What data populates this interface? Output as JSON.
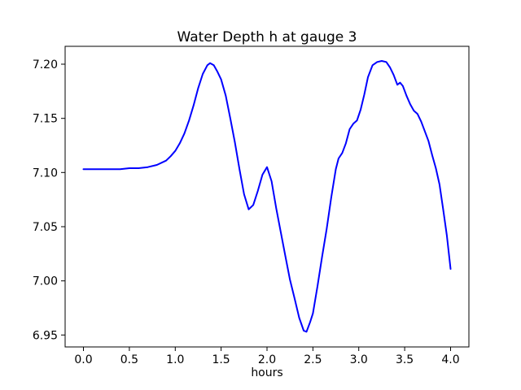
{
  "chart_data": {
    "type": "line",
    "title": "Water Depth h at gauge 3",
    "xlabel": "hours",
    "ylabel": "",
    "x_ticks": [
      "0.0",
      "0.5",
      "1.0",
      "1.5",
      "2.0",
      "2.5",
      "3.0",
      "3.5",
      "4.0"
    ],
    "y_ticks": [
      "6.95",
      "7.00",
      "7.05",
      "7.10",
      "7.15",
      "7.20"
    ],
    "xlim": [
      -0.2,
      4.2
    ],
    "ylim": [
      6.939,
      7.2165
    ],
    "grid": false,
    "legend": "none",
    "line_color": "#0000ff",
    "axis_color": "#000000",
    "background_color": "#ffffff",
    "series": [
      {
        "name": "h",
        "points": [
          [
            0.0,
            7.103
          ],
          [
            0.1,
            7.103
          ],
          [
            0.2,
            7.103
          ],
          [
            0.3,
            7.103
          ],
          [
            0.4,
            7.103
          ],
          [
            0.5,
            7.104
          ],
          [
            0.6,
            7.104
          ],
          [
            0.7,
            7.105
          ],
          [
            0.8,
            7.107
          ],
          [
            0.9,
            7.111
          ],
          [
            0.95,
            7.115
          ],
          [
            1.0,
            7.12
          ],
          [
            1.05,
            7.127
          ],
          [
            1.1,
            7.136
          ],
          [
            1.15,
            7.148
          ],
          [
            1.2,
            7.162
          ],
          [
            1.25,
            7.178
          ],
          [
            1.3,
            7.191
          ],
          [
            1.35,
            7.199
          ],
          [
            1.38,
            7.201
          ],
          [
            1.42,
            7.199
          ],
          [
            1.46,
            7.193
          ],
          [
            1.5,
            7.186
          ],
          [
            1.55,
            7.171
          ],
          [
            1.6,
            7.15
          ],
          [
            1.65,
            7.128
          ],
          [
            1.7,
            7.103
          ],
          [
            1.75,
            7.08
          ],
          [
            1.8,
            7.066
          ],
          [
            1.85,
            7.07
          ],
          [
            1.9,
            7.083
          ],
          [
            1.95,
            7.098
          ],
          [
            2.0,
            7.105
          ],
          [
            2.05,
            7.092
          ],
          [
            2.1,
            7.067
          ],
          [
            2.15,
            7.045
          ],
          [
            2.2,
            7.023
          ],
          [
            2.25,
            7.001
          ],
          [
            2.3,
            6.984
          ],
          [
            2.35,
            6.966
          ],
          [
            2.4,
            6.954
          ],
          [
            2.43,
            6.953
          ],
          [
            2.47,
            6.962
          ],
          [
            2.5,
            6.97
          ],
          [
            2.55,
            6.995
          ],
          [
            2.6,
            7.022
          ],
          [
            2.65,
            7.048
          ],
          [
            2.7,
            7.077
          ],
          [
            2.75,
            7.103
          ],
          [
            2.78,
            7.113
          ],
          [
            2.82,
            7.118
          ],
          [
            2.86,
            7.127
          ],
          [
            2.9,
            7.14
          ],
          [
            2.94,
            7.145
          ],
          [
            2.98,
            7.148
          ],
          [
            3.02,
            7.158
          ],
          [
            3.06,
            7.172
          ],
          [
            3.1,
            7.188
          ],
          [
            3.15,
            7.199
          ],
          [
            3.2,
            7.202
          ],
          [
            3.25,
            7.203
          ],
          [
            3.3,
            7.202
          ],
          [
            3.34,
            7.197
          ],
          [
            3.38,
            7.19
          ],
          [
            3.42,
            7.181
          ],
          [
            3.45,
            7.183
          ],
          [
            3.48,
            7.18
          ],
          [
            3.52,
            7.171
          ],
          [
            3.56,
            7.163
          ],
          [
            3.6,
            7.157
          ],
          [
            3.64,
            7.154
          ],
          [
            3.68,
            7.147
          ],
          [
            3.72,
            7.138
          ],
          [
            3.76,
            7.129
          ],
          [
            3.8,
            7.116
          ],
          [
            3.84,
            7.104
          ],
          [
            3.88,
            7.089
          ],
          [
            3.92,
            7.066
          ],
          [
            3.96,
            7.042
          ],
          [
            4.0,
            7.011
          ]
        ]
      }
    ]
  }
}
